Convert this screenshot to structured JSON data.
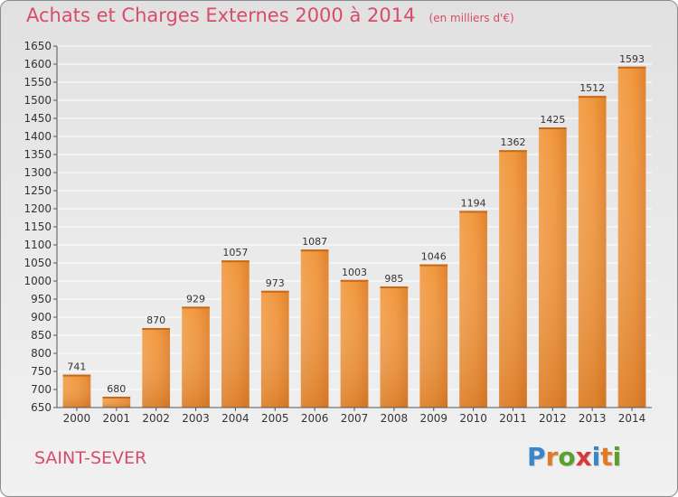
{
  "header": {
    "title": "Achats et Charges Externes 2000 à 2014",
    "unit": "(en milliers d'€)"
  },
  "footer": {
    "commune": "SAINT-SEVER",
    "logo_letters": [
      "P",
      "r",
      "o",
      "x",
      "i",
      "t",
      "i"
    ],
    "logo_colors": [
      "#3a86c8",
      "#e07b2a",
      "#5aa02c",
      "#d63a3a",
      "#3a86c8",
      "#e07b2a",
      "#5aa02c"
    ]
  },
  "colors": {
    "bar": "#f0963c",
    "bar_light": "#f6a65a",
    "bar_dark": "#dd7a22",
    "title": "#d94b6b",
    "grid": "#ffffff",
    "text": "#333333"
  },
  "chart_data": {
    "type": "bar",
    "title": "Achats et Charges Externes 2000 à 2014",
    "subtitle": "(en milliers d'€)",
    "categories": [
      "2000",
      "2001",
      "2002",
      "2003",
      "2004",
      "2005",
      "2006",
      "2007",
      "2008",
      "2009",
      "2010",
      "2011",
      "2012",
      "2013",
      "2014"
    ],
    "values": [
      741,
      680,
      870,
      929,
      1057,
      973,
      1087,
      1003,
      985,
      1046,
      1194,
      1362,
      1425,
      1512,
      1593
    ],
    "ylim": [
      650,
      1650
    ],
    "ytick_step": 50,
    "grid": true,
    "xlabel": "",
    "ylabel": ""
  }
}
